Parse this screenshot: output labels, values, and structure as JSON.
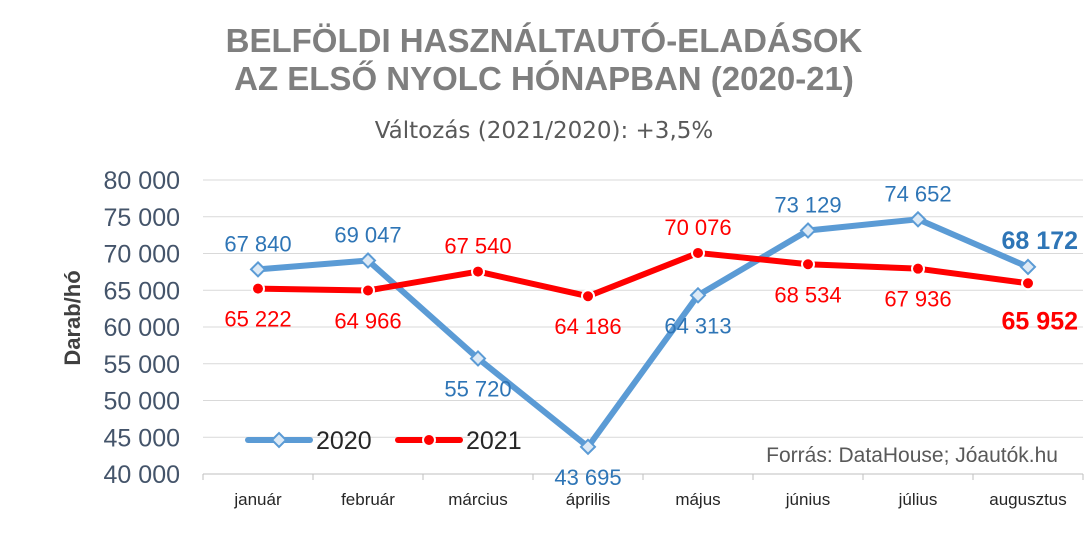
{
  "chart_data": {
    "type": "line",
    "title_lines": [
      "BELFÖLDI HASZNÁLTAUTÓ-ELADÁSOK",
      "AZ ELSŐ NYOLC HÓNAPBAN (2020-21)"
    ],
    "subtitle": "Változás (2021/2020): +3,5%",
    "ylabel": "Darab/hó",
    "xlabel": "",
    "categories": [
      "január",
      "február",
      "március",
      "április",
      "május",
      "június",
      "július",
      "augusztus"
    ],
    "ylim": [
      40000,
      80000
    ],
    "yticks": [
      "40 000",
      "45 000",
      "50 000",
      "55 000",
      "60 000",
      "65 000",
      "70 000",
      "75 000",
      "80 000"
    ],
    "grid": true,
    "legend_position": "bottom-left",
    "series": [
      {
        "name": "2020",
        "color": "#5b9bd5",
        "marker": "diamond",
        "values": [
          67840,
          69047,
          55720,
          43695,
          64313,
          73129,
          74652,
          68172
        ],
        "labels": [
          "67 840",
          "69 047",
          "55 720",
          "43 695",
          "64 313",
          "73 129",
          "74 652",
          "68 172"
        ]
      },
      {
        "name": "2021",
        "color": "#ff0000",
        "marker": "circle",
        "values": [
          65222,
          64966,
          67540,
          64186,
          70076,
          68534,
          67936,
          65952
        ],
        "labels": [
          "65 222",
          "64 966",
          "67 540",
          "64 186",
          "70 076",
          "68 534",
          "67 936",
          "65 952"
        ]
      }
    ],
    "source": "Forrás: DataHouse; Jóautók.hu"
  }
}
